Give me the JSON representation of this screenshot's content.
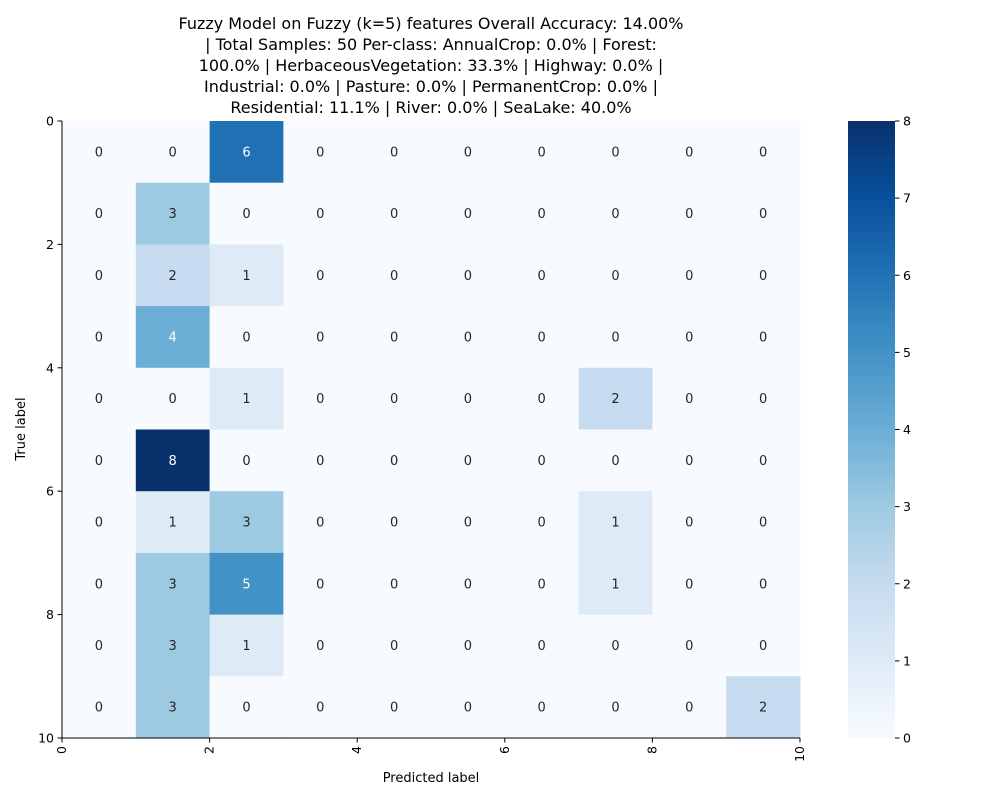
{
  "chart_data": {
    "type": "heatmap",
    "title_lines": [
      "Fuzzy Model on Fuzzy (k=5) features Overall Accuracy: 14.00%",
      "| Total Samples: 50 Per-class: AnnualCrop: 0.0% | Forest:",
      "100.0% | HerbaceousVegetation: 33.3% | Highway: 0.0% |",
      "Industrial: 0.0% | Pasture: 0.0% | PermanentCrop: 0.0% |",
      "Residential: 11.1% | River: 0.0% | SeaLake: 40.0%"
    ],
    "xlabel": "Predicted label",
    "ylabel": "True label",
    "x_ticks": [
      "0",
      "2",
      "4",
      "6",
      "8",
      "10"
    ],
    "y_ticks": [
      "0",
      "2",
      "4",
      "6",
      "8",
      "10"
    ],
    "matrix": [
      [
        0,
        0,
        6,
        0,
        0,
        0,
        0,
        0,
        0,
        0
      ],
      [
        0,
        3,
        0,
        0,
        0,
        0,
        0,
        0,
        0,
        0
      ],
      [
        0,
        2,
        1,
        0,
        0,
        0,
        0,
        0,
        0,
        0
      ],
      [
        0,
        4,
        0,
        0,
        0,
        0,
        0,
        0,
        0,
        0
      ],
      [
        0,
        0,
        1,
        0,
        0,
        0,
        0,
        2,
        0,
        0
      ],
      [
        0,
        8,
        0,
        0,
        0,
        0,
        0,
        0,
        0,
        0
      ],
      [
        0,
        1,
        3,
        0,
        0,
        0,
        0,
        1,
        0,
        0
      ],
      [
        0,
        3,
        5,
        0,
        0,
        0,
        0,
        1,
        0,
        0
      ],
      [
        0,
        3,
        1,
        0,
        0,
        0,
        0,
        0,
        0,
        0
      ],
      [
        0,
        3,
        0,
        0,
        0,
        0,
        0,
        0,
        0,
        2
      ]
    ],
    "colorbar": {
      "min": 0,
      "max": 8,
      "ticks": [
        "0",
        "1",
        "2",
        "3",
        "4",
        "5",
        "6",
        "7",
        "8"
      ],
      "colormap": "Blues"
    },
    "colors": {
      "low": "#f7fbff",
      "high": "#08306b"
    }
  }
}
